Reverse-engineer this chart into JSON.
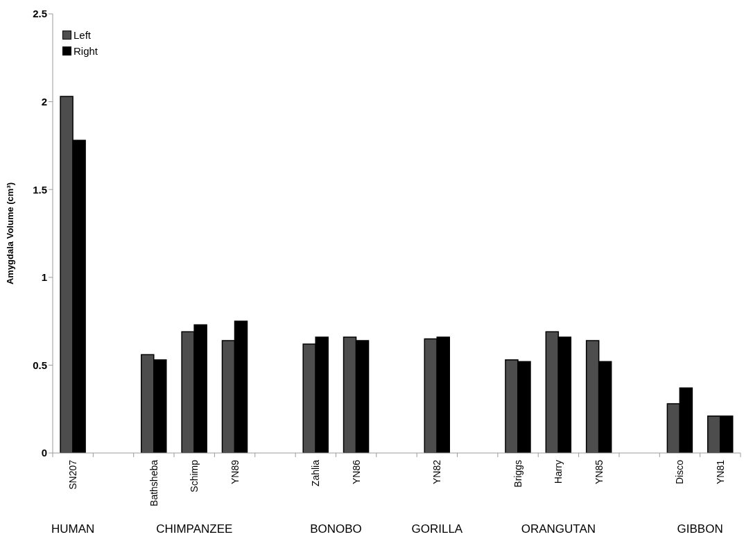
{
  "chart_data": {
    "type": "bar",
    "ylabel": "Amygdala Volume (cm³)",
    "categories": [
      "SN207",
      null,
      "Bathsheba",
      "Schimp",
      "YN89",
      null,
      "Zahlia",
      "YN86",
      null,
      "YN82",
      null,
      "Briggs",
      "Harry",
      "YN85",
      null,
      "Disco",
      "YN81"
    ],
    "series": [
      {
        "name": "Left",
        "color": "#4d4d4d",
        "values": [
          2.03,
          null,
          0.56,
          0.69,
          0.64,
          null,
          0.62,
          0.66,
          null,
          0.65,
          null,
          0.53,
          0.69,
          0.64,
          null,
          0.28,
          0.21
        ]
      },
      {
        "name": "Right",
        "color": "#000000",
        "values": [
          1.78,
          null,
          0.53,
          0.73,
          0.75,
          null,
          0.66,
          0.64,
          null,
          0.66,
          null,
          0.52,
          0.66,
          0.52,
          null,
          0.37,
          0.21
        ]
      }
    ],
    "ylim": [
      0,
      2.5
    ],
    "yticks": [
      0,
      0.5,
      1,
      1.5,
      2,
      2.5
    ],
    "legend": "top left",
    "annotations": [
      "HUMAN",
      "CHIMPANZEE",
      "BONOBO",
      "GORILLA",
      "ORANGUTAN",
      "GIBBON"
    ]
  }
}
